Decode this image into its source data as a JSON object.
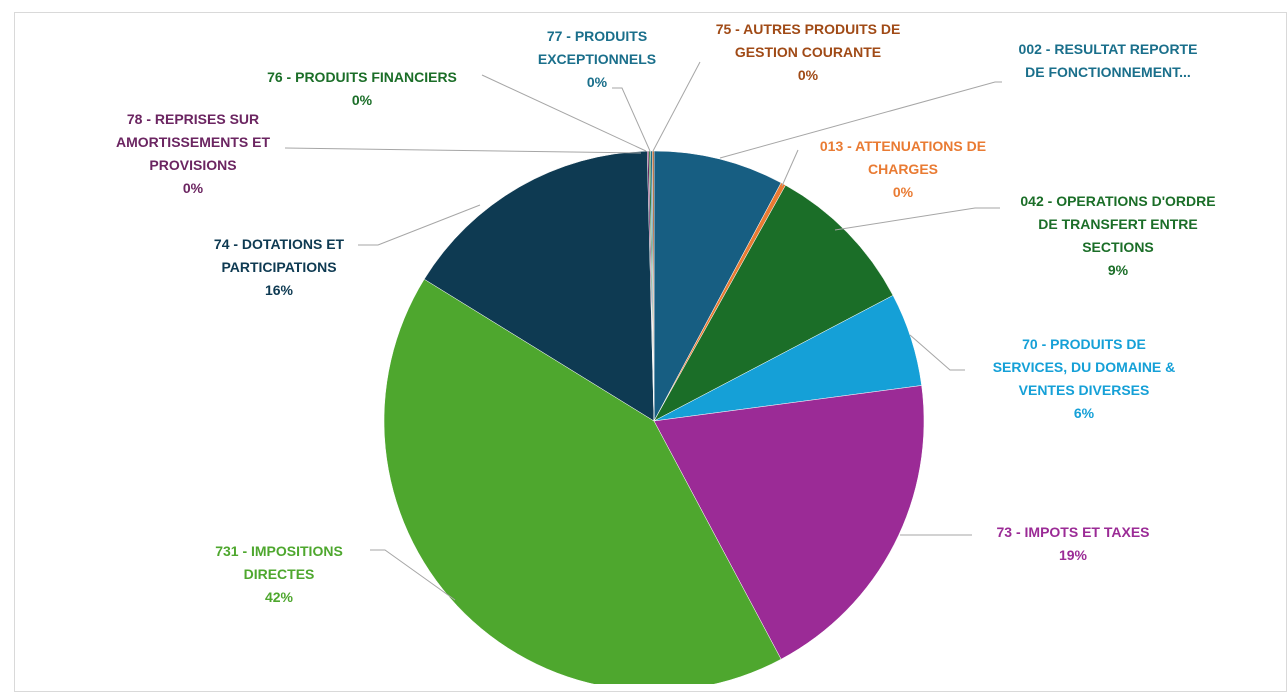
{
  "chart_data": {
    "type": "pie",
    "categories": [
      "002 - RESULTAT REPORTE\nDE FONCTIONNEMENT...",
      "013 - ATTENUATIONS DE\nCHARGES",
      "042 - OPERATIONS D'ORDRE\nDE TRANSFERT ENTRE\nSECTIONS",
      "70 - PRODUITS DE\nSERVICES, DU DOMAINE &\nVENTES DIVERSES",
      "73 - IMPOTS ET TAXES",
      "731 - IMPOSITIONS\nDIRECTES",
      "74 - DOTATIONS ET\nPARTICIPATIONS",
      "78 - REPRISES SUR\nAMORTISSEMENTS ET\nPROVISIONS",
      "76 - PRODUITS FINANCIERS",
      "77 - PRODUITS\nEXCEPTIONNELS",
      "75 - AUTRES PRODUITS DE\nGESTION COURANTE"
    ],
    "values": [
      7.8,
      0.3,
      9.2,
      5.6,
      19.3,
      41.6,
      15.8,
      0.1,
      0.1,
      0.1,
      0.1
    ],
    "value_labels": [
      null,
      "0%",
      "9%",
      "6%",
      "19%",
      "42%",
      "16%",
      "0%",
      "0%",
      "0%",
      "0%"
    ],
    "colors": [
      "#175e82",
      "#e97b33",
      "#1b6e28",
      "#15a0d7",
      "#9b2b96",
      "#4ea72e",
      "#0e3a52",
      "#6b2561",
      "#1b6e28",
      "#1a6f8b",
      "#a04a16"
    ],
    "label_colors": [
      "#1a6f8b",
      "#e97b33",
      "#1b6e28",
      "#15a0d7",
      "#9b2b96",
      "#4ea72e",
      "#0e3a52",
      "#6b2561",
      "#1b6e28",
      "#1a6f8b",
      "#a04a16"
    ]
  }
}
